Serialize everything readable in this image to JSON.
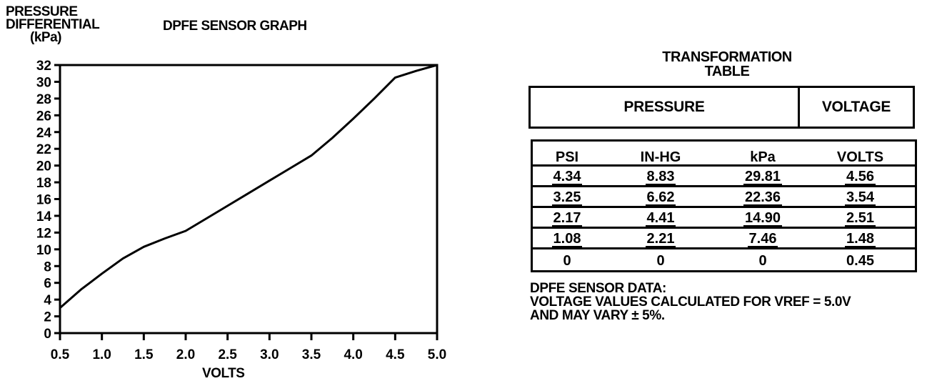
{
  "chart_data": {
    "type": "line",
    "title": "DPFE SENSOR GRAPH",
    "ylabel_lines": [
      "PRESSURE",
      "DIFFERENTIAL",
      "(kPa)"
    ],
    "xlabel": "VOLTS",
    "xlim": [
      0.5,
      5.0
    ],
    "ylim": [
      0,
      32
    ],
    "x_ticks": [
      "0.5",
      "1.0",
      "1.5",
      "2.0",
      "2.5",
      "3.0",
      "3.5",
      "4.0",
      "4.5",
      "5.0"
    ],
    "y_ticks": [
      "0",
      "2",
      "4",
      "6",
      "8",
      "10",
      "12",
      "14",
      "16",
      "18",
      "20",
      "22",
      "24",
      "26",
      "28",
      "30",
      "32"
    ],
    "grid": false,
    "series": [
      {
        "x": [
          0.5,
          0.75,
          1.0,
          1.25,
          1.5,
          1.75,
          2.0,
          2.25,
          2.5,
          2.75,
          3.0,
          3.25,
          3.5,
          3.75,
          4.0,
          4.25,
          4.5,
          4.75,
          5.0
        ],
        "y": [
          3.0,
          5.2,
          7.1,
          8.9,
          10.3,
          11.3,
          12.2,
          13.7,
          15.2,
          16.7,
          18.2,
          19.7,
          21.2,
          23.3,
          25.6,
          28.0,
          30.5,
          31.3,
          32.0
        ]
      }
    ]
  },
  "table": {
    "title_lines": [
      "TRANSFORMATION",
      "TABLE"
    ],
    "group_headers": [
      "PRESSURE",
      "VOLTAGE"
    ],
    "columns": [
      "PSI",
      "IN-HG",
      "kPa",
      "VOLTS"
    ],
    "rows": [
      [
        "4.34",
        "8.83",
        "29.81",
        "4.56"
      ],
      [
        "3.25",
        "6.62",
        "22.36",
        "3.54"
      ],
      [
        "2.17",
        "4.41",
        "14.90",
        "2.51"
      ],
      [
        "1.08",
        "2.21",
        "7.46",
        "1.48"
      ],
      [
        "0",
        "0",
        "0",
        "0.45"
      ]
    ]
  },
  "notes": [
    "DPFE SENSOR DATA:",
    "VOLTAGE VALUES CALCULATED FOR VREF = 5.0V",
    "AND MAY VARY ± 5%."
  ]
}
